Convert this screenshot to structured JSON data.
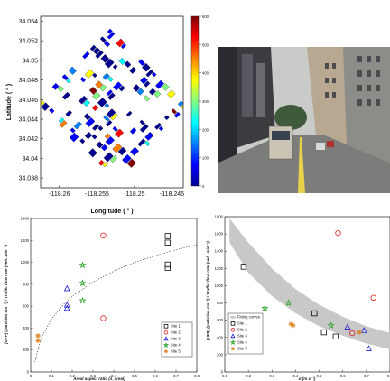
{
  "panels": {
    "map": {
      "xlabel": "Longitude ( ° )",
      "ylabel": "Latitude ( ° )",
      "xticks": [
        "-118.26",
        "-118.255",
        "-118.25",
        "-118.245"
      ],
      "xtick_values": [
        -118.26,
        -118.255,
        -118.25,
        -118.245
      ],
      "yticks": [
        "34.054",
        "34.052",
        "34.05",
        "34.048",
        "34.046",
        "34.044",
        "34.042",
        "34.04",
        "34.038"
      ],
      "ytick_values": [
        34.054,
        34.052,
        34.05,
        34.048,
        34.046,
        34.044,
        34.042,
        34.04,
        34.038
      ],
      "colorbar": {
        "ticks": [
          "600",
          "500",
          "400",
          "300",
          "200",
          "100",
          "0"
        ],
        "tick_values": [
          600,
          500,
          400,
          300,
          200,
          100,
          0
        ],
        "range": [
          0,
          600
        ],
        "colors": [
          "#00008f",
          "#0000ff",
          "#0080ff",
          "#00ffff",
          "#80ff80",
          "#ffff00",
          "#ff8000",
          "#ff0000",
          "#800000"
        ]
      }
    },
    "photo": {}
  },
  "chart_data": [
    {
      "type": "scatter",
      "xlabel": "Areal aspect ratio (λ_areal)",
      "ylabel": "[UFP] (particles cm⁻³) / Traffic flow rate (veh. min⁻¹)",
      "xticks": [
        "0",
        "0.1",
        "0.2",
        "0.3",
        "0.4",
        "0.5",
        "0.6",
        "0.7",
        "0.8"
      ],
      "xlim": [
        0,
        0.8
      ],
      "yticks": [
        "0",
        "200",
        "400",
        "600",
        "800",
        "1000",
        "1200",
        "1400"
      ],
      "ylim": [
        0,
        1400
      ],
      "grid": false,
      "legend_position": "lower-right",
      "series": [
        {
          "name": "Site 1",
          "marker": "square",
          "color": "#111111",
          "points": [
            [
              0.66,
              1240
            ],
            [
              0.66,
              1180
            ],
            [
              0.66,
              980
            ],
            [
              0.66,
              950
            ]
          ]
        },
        {
          "name": "Site 2",
          "marker": "circle",
          "color": "#e02020",
          "points": [
            [
              0.35,
              1245
            ],
            [
              0.35,
              490
            ]
          ]
        },
        {
          "name": "Site 3",
          "marker": "triangle",
          "color": "#2020d0",
          "points": [
            [
              0.175,
              760
            ],
            [
              0.175,
              610
            ],
            [
              0.175,
              580
            ]
          ]
        },
        {
          "name": "Site 4",
          "marker": "star",
          "color": "#20a020",
          "points": [
            [
              0.25,
              975
            ],
            [
              0.25,
              810
            ],
            [
              0.25,
              650
            ]
          ]
        },
        {
          "name": "Site 5",
          "marker": "asterisk",
          "color": "#e08020",
          "points": [
            [
              0.035,
              330
            ],
            [
              0.035,
              285
            ]
          ]
        }
      ],
      "fit_curve": {
        "style": "dotted",
        "x": [
          0.02,
          0.05,
          0.1,
          0.15,
          0.2,
          0.3,
          0.4,
          0.5,
          0.6,
          0.7,
          0.8
        ],
        "y": [
          90,
          310,
          480,
          600,
          690,
          820,
          920,
          1000,
          1060,
          1115,
          1160
        ]
      }
    },
    {
      "type": "scatter",
      "xlabel": "σ (m s⁻¹)",
      "ylabel": "[UFP] (particles cm⁻³) / Traffic flow rate (veh. min⁻¹)",
      "xticks": [
        "0.1",
        "0.2",
        "0.3",
        "0.4",
        "0.5",
        "0.6",
        "0.7",
        "0.8"
      ],
      "xlim": [
        0.1,
        0.8
      ],
      "yticks": [
        "0",
        "200",
        "400",
        "600",
        "800",
        "1000",
        "1200",
        "1400",
        "1600",
        "1800"
      ],
      "ylim": [
        0,
        1800
      ],
      "grid": false,
      "legend_position": "top-left",
      "series": [
        {
          "name": "Fitting curves",
          "marker": "band",
          "color": "#c8c8c8",
          "points": []
        },
        {
          "name": "Site 1",
          "marker": "square",
          "color": "#111111",
          "points": [
            [
              0.18,
              1220
            ],
            [
              0.48,
              680
            ],
            [
              0.52,
              460
            ],
            [
              0.57,
              410
            ]
          ]
        },
        {
          "name": "Site 2",
          "marker": "circle",
          "color": "#e02020",
          "points": [
            [
              0.58,
              1610
            ],
            [
              0.73,
              860
            ],
            [
              0.64,
              450
            ]
          ]
        },
        {
          "name": "Site 3",
          "marker": "triangle",
          "color": "#2020d0",
          "points": [
            [
              0.62,
              520
            ],
            [
              0.69,
              480
            ],
            [
              0.71,
              270
            ]
          ]
        },
        {
          "name": "Site 4",
          "marker": "star",
          "color": "#20a020",
          "points": [
            [
              0.27,
              740
            ],
            [
              0.37,
              800
            ],
            [
              0.55,
              540
            ]
          ]
        },
        {
          "name": "Site 5",
          "marker": "asterisk",
          "color": "#e08020",
          "points": [
            [
              0.38,
              555
            ],
            [
              0.39,
              540
            ],
            [
              0.67,
              460
            ]
          ]
        }
      ],
      "fit_band": {
        "upper": [
          [
            0.12,
            1780
          ],
          [
            0.2,
            1500
          ],
          [
            0.3,
            1200
          ],
          [
            0.4,
            960
          ],
          [
            0.5,
            780
          ],
          [
            0.6,
            640
          ],
          [
            0.7,
            530
          ],
          [
            0.8,
            450
          ]
        ],
        "lower": [
          [
            0.12,
            1500
          ],
          [
            0.2,
            1150
          ],
          [
            0.3,
            880
          ],
          [
            0.4,
            680
          ],
          [
            0.5,
            530
          ],
          [
            0.6,
            420
          ],
          [
            0.7,
            330
          ],
          [
            0.8,
            260
          ]
        ]
      }
    }
  ]
}
